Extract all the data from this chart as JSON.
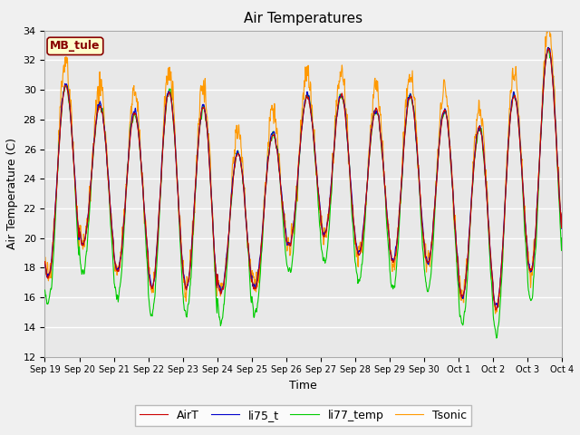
{
  "title": "Air Temperatures",
  "xlabel": "Time",
  "ylabel": "Air Temperature (C)",
  "ylim": [
    12,
    34
  ],
  "site_label": "MB_tule",
  "series_colors": {
    "AirT": "#cc0000",
    "li75_t": "#0000cc",
    "li77_temp": "#00cc00",
    "Tsonic": "#ff9900"
  },
  "line_width": 0.8,
  "fig_bg": "#f0f0f0",
  "plot_bg": "#e8e8e8",
  "legend_bg": "#ffffcc",
  "legend_border": "#880000",
  "grid_color": "#ffffff",
  "xtick_labels": [
    "Sep 19",
    "Sep 20",
    "Sep 21",
    "Sep 22",
    "Sep 23",
    "Sep 24",
    "Sep 25",
    "Sep 26",
    "Sep 27",
    "Sep 28",
    "Sep 29",
    "Sep 30",
    "Oct 1",
    "Oct 2",
    "Oct 3",
    "Oct 4"
  ],
  "ytick_positions": [
    12,
    14,
    16,
    18,
    20,
    22,
    24,
    26,
    28,
    30,
    32,
    34
  ],
  "figsize": [
    6.4,
    4.8
  ],
  "dpi": 100
}
